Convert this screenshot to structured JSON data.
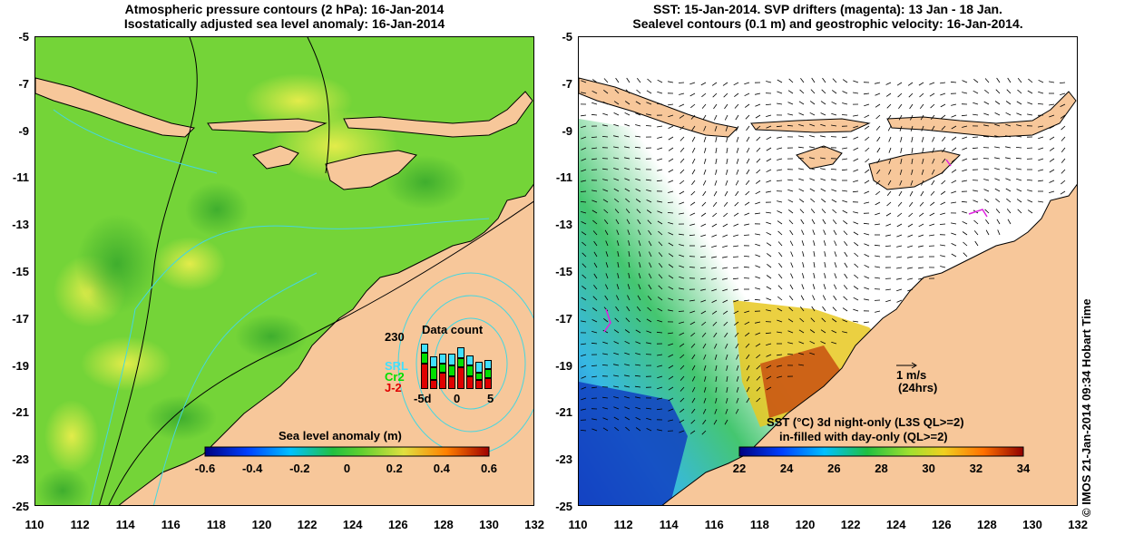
{
  "left_panel": {
    "title_line1": "Atmospheric pressure contours (2 hPa): 16-Jan-2014",
    "title_line2": "Isostatically adjusted sea level anomaly: 16-Jan-2014",
    "colorbar_label": "Sea level anomaly (m)",
    "colorbar_ticks": [
      "-0.6",
      "-0.4",
      "-0.2",
      "0",
      "0.2",
      "0.4",
      "0.6"
    ],
    "data_count": {
      "title": "Data count",
      "max_label": "230",
      "x_labels": [
        "-5d",
        "0",
        "5"
      ],
      "missions": [
        {
          "name": "SRL",
          "color": "#40e0ff"
        },
        {
          "name": "Cr2",
          "color": "#00e000"
        },
        {
          "name": "J-2",
          "color": "#e00000"
        }
      ]
    }
  },
  "right_panel": {
    "title_line1": "SST: 15-Jan-2014. SVP drifters (magenta): 13 Jan - 18 Jan.",
    "title_line2": "Sealevel contours (0.1 m) and geostrophic velocity: 16-Jan-2014.",
    "scale_arrow_label": "1 m/s",
    "scale_arrow_sub": "(24hrs)",
    "colorbar_label_line1": "SST (°C)  3d night-only (L3S QL>=2)",
    "colorbar_label_line2": "in-filled with day-only (QL>=2)",
    "colorbar_ticks": [
      "22",
      "24",
      "26",
      "28",
      "30",
      "32",
      "34"
    ]
  },
  "y_ticks": [
    "-5",
    "-7",
    "-9",
    "-11",
    "-13",
    "-15",
    "-17",
    "-19",
    "-21",
    "-23",
    "-25"
  ],
  "x_ticks": [
    "110",
    "112",
    "114",
    "116",
    "118",
    "120",
    "122",
    "124",
    "126",
    "128",
    "130",
    "132"
  ],
  "credit": "© IMOS 21-Jan-2014 09:34 Hobart Time",
  "colors": {
    "land": "#f7c79a",
    "sea_green": "#6fd13a",
    "sea_yellow": "#d9e84a",
    "contour_cyan": "#45d6e0"
  }
}
